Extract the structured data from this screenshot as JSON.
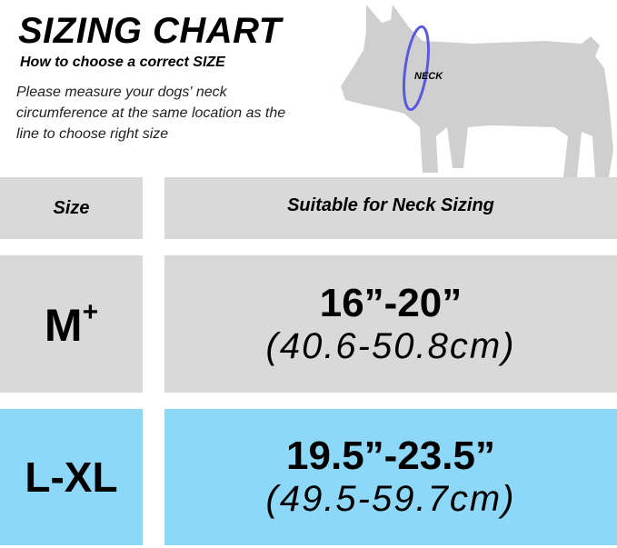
{
  "header": {
    "title": "SIZING CHART",
    "subtitle": "How to choose a correct SIZE",
    "description": "Please measure your dogs' neck circumference at the same location as the line to choose right size",
    "neck_label": "NECK"
  },
  "table": {
    "columns": [
      "Size",
      "Suitable for Neck Sizing"
    ],
    "rows": [
      {
        "size": "M",
        "size_sup": "+",
        "inches": "16”-20”",
        "cm": "(40.6-50.8cm)",
        "color": "#d9d9d9"
      },
      {
        "size": "L-XL",
        "size_sup": "",
        "inches": "19.5”-23.5”",
        "cm": "(49.5-59.7cm)",
        "color": "#8dd8f8"
      }
    ]
  },
  "colors": {
    "neck_line": "#5a5ae0",
    "dog": "#cfcfcf"
  }
}
